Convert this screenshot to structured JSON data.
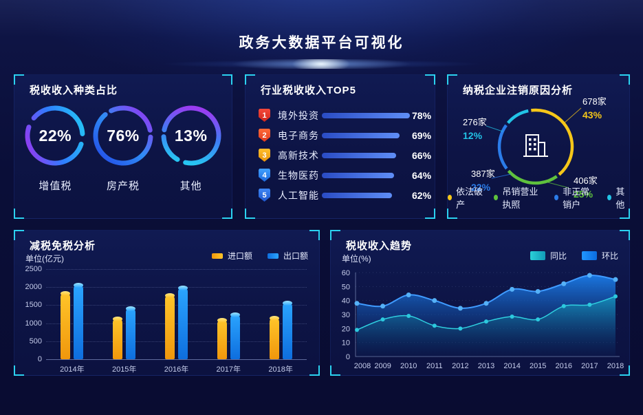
{
  "header": {
    "title": "政务大数据平台可视化"
  },
  "theme": {
    "page_bg": "#0a0e38",
    "panel_bg": "#0d1445",
    "corner_accent": "#2bd2f0",
    "text_primary": "#ffffff",
    "text_secondary": "#c6cdeb"
  },
  "chart_data": [
    {
      "type": "pie",
      "variant": "progress-rings",
      "title": "税收收入种类占比",
      "unit": "%",
      "items": [
        {
          "label": "增值税",
          "value": 22,
          "display": "22%"
        },
        {
          "label": "房产税",
          "value": 76,
          "display": "76%"
        },
        {
          "label": "其他",
          "value": 13,
          "display": "13%"
        }
      ],
      "ring_colors": [
        [
          "#9a36f0",
          "#2f7dff",
          "#24c8f5"
        ],
        [
          "#2451e8",
          "#2f8df5",
          "#8d3cf2"
        ],
        [
          "#27c6f2",
          "#3f7df5",
          "#9a3cf0"
        ]
      ]
    },
    {
      "type": "bar",
      "variant": "horizontal-ranked",
      "title": "行业税收收入TOP5",
      "categories": [
        "境外投资",
        "电子商务",
        "高新技术",
        "生物医药",
        "人工智能"
      ],
      "values": [
        78,
        69,
        66,
        64,
        62
      ],
      "value_labels": [
        "78%",
        "69%",
        "66%",
        "64%",
        "62%"
      ],
      "ranks": [
        "1",
        "2",
        "3",
        "4",
        "5"
      ],
      "rank_colors": [
        [
          "#f4483a",
          "#cf281c"
        ],
        [
          "#ff6a38",
          "#e03a1e"
        ],
        [
          "#ffbe2c",
          "#e8930c"
        ],
        [
          "#41a0ff",
          "#1d67dc"
        ],
        [
          "#3e86f4",
          "#1d55cc"
        ]
      ],
      "bar_color": [
        "#2a4cc4",
        "#5f8ef6"
      ],
      "xlim": [
        0,
        80
      ]
    },
    {
      "type": "pie",
      "variant": "donut",
      "title": "纳税企业注销原因分析",
      "labels": [
        "依法破产",
        "吊销营业执照",
        "非正常销户",
        "其他"
      ],
      "values": [
        43,
        25,
        22,
        12
      ],
      "counts": [
        "678家",
        "406家",
        "387家",
        "276家"
      ],
      "percent_labels": [
        "43%",
        "25%",
        "22%",
        "12%"
      ],
      "colors": [
        "#f5c619",
        "#5fc13d",
        "#2b7ce9",
        "#22c3e6"
      ],
      "center_icon": "building-icon",
      "legend_position": "bottom"
    },
    {
      "type": "bar",
      "title": "减税免税分析",
      "unit": "单位(亿元)",
      "categories": [
        "2014年",
        "2015年",
        "2016年",
        "2017年",
        "2018年"
      ],
      "series": [
        {
          "name": "进口额",
          "values": [
            1850,
            1140,
            1800,
            1110,
            1160
          ],
          "colors": [
            "#ffc52a",
            "#f0970c"
          ],
          "cap_colors": [
            "#ffe782",
            "#ffbf24"
          ]
        },
        {
          "name": "出口额",
          "values": [
            2080,
            1430,
            2000,
            1260,
            1580
          ],
          "colors": [
            "#2ba5ff",
            "#0e6ede"
          ],
          "cap_colors": [
            "#9fe5ff",
            "#2ba5ff"
          ]
        }
      ],
      "ylim": [
        0,
        2500
      ],
      "yticks": [
        2500,
        2000,
        1500,
        1000,
        500,
        0
      ],
      "grid": true,
      "legend_position": "top-right"
    },
    {
      "type": "area",
      "title": "税收收入趋势",
      "unit": "单位(%)",
      "x": [
        "2008",
        "2009",
        "2010",
        "2011",
        "2012",
        "2013",
        "2014",
        "2015",
        "2016",
        "2017",
        "2018"
      ],
      "series": [
        {
          "name": "环比",
          "values": [
            38,
            36,
            44,
            40,
            34.5,
            38,
            48,
            46.5,
            52,
            58,
            55
          ],
          "line": "#3f9bff",
          "dot": "#55b1f7",
          "fill_top": "#1b7ce8",
          "fill_bottom": "#0a1f5e"
        },
        {
          "name": "同比",
          "values": [
            19,
            26.5,
            29,
            22,
            20,
            25,
            28.5,
            26.5,
            36,
            37,
            43
          ],
          "line": "#2fd0e0",
          "dot": "#2cc9de",
          "fill_top": "#17aec6",
          "fill_bottom": "#0a3a66"
        }
      ],
      "legend": [
        "同比",
        "环比"
      ],
      "legend_colors": [
        [
          "#2ad0d8",
          "#129ab8"
        ],
        [
          "#2196ff",
          "#0b6ce0"
        ]
      ],
      "ylim": [
        0,
        60
      ],
      "yticks": [
        60,
        50,
        40,
        30,
        20,
        10,
        0
      ],
      "grid": true,
      "legend_position": "top-right"
    }
  ]
}
